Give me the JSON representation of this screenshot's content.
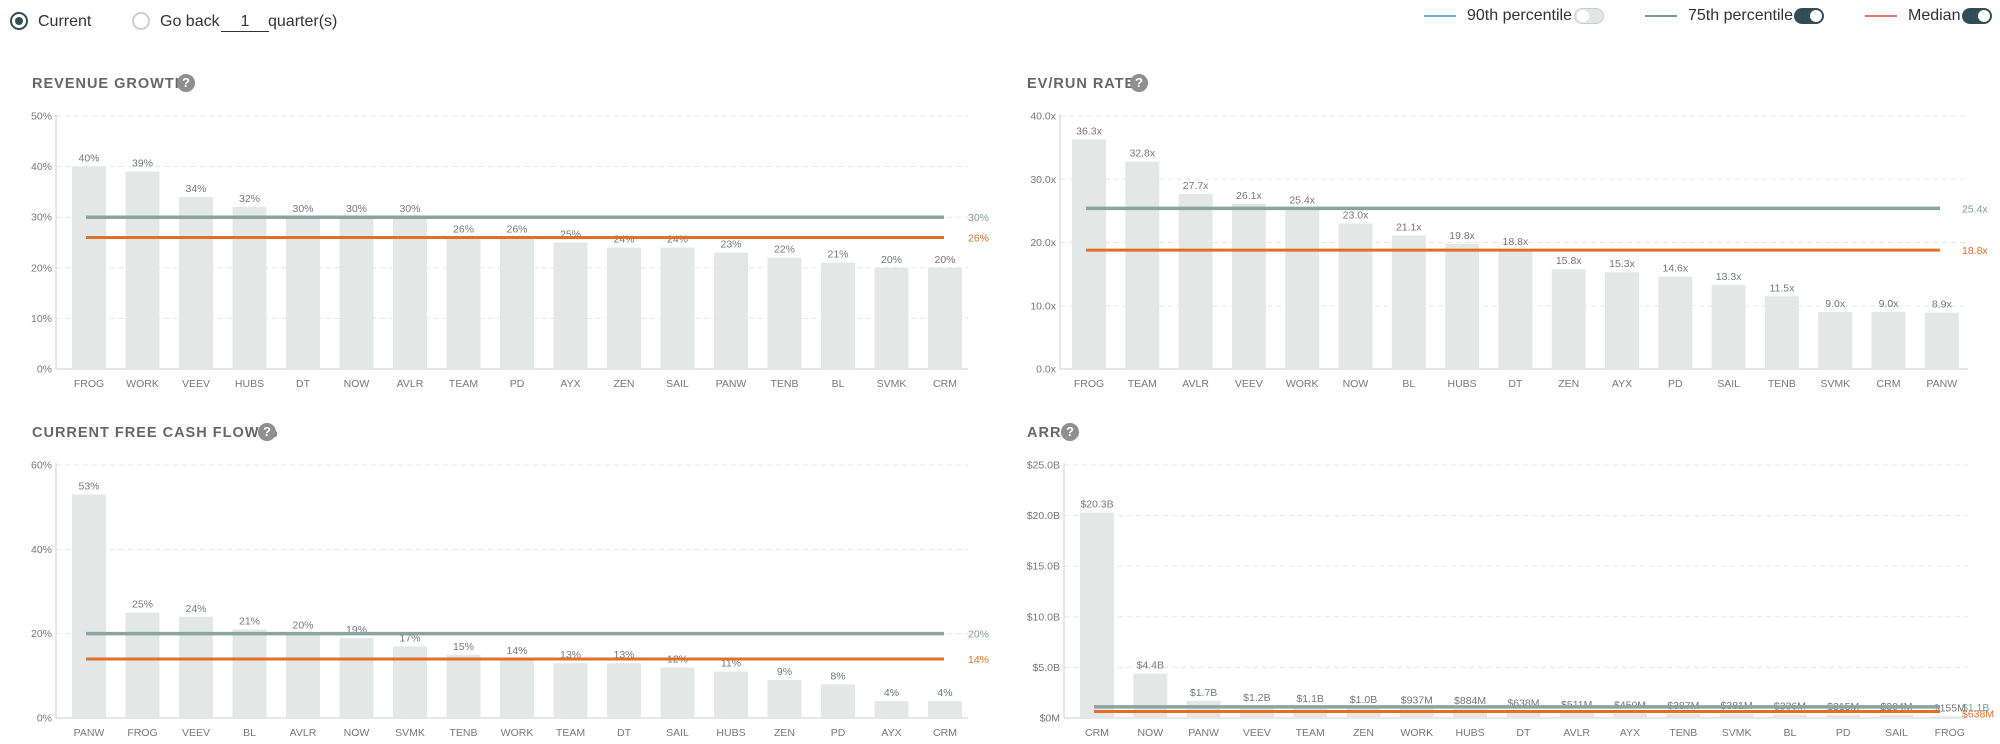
{
  "controls": {
    "current_label": "Current",
    "go_back_label": "Go back",
    "go_back_value": "1",
    "quarters_label": "quarter(s)"
  },
  "legend": {
    "p90_label": "90th percentile",
    "p75_label": "75th percentile",
    "median_label": "Median",
    "p90_color": "#6aa9d8",
    "p75_color": "#7c9a9c",
    "median_color": "#e07a6e",
    "p90_enabled": false,
    "p75_enabled": true,
    "median_enabled": true
  },
  "colors": {
    "bar": "#e3e8e6",
    "p75_line": "#8aa3a3",
    "median_line": "#e07028",
    "p75_text": "#7c9a9c",
    "median_text": "#e07028"
  },
  "chart_data": [
    {
      "id": "revenue-growth",
      "type": "bar",
      "title": "REVENUE GROWTH",
      "categories": [
        "FROG",
        "WORK",
        "VEEV",
        "HUBS",
        "DT",
        "NOW",
        "AVLR",
        "TEAM",
        "PD",
        "AYX",
        "ZEN",
        "SAIL",
        "PANW",
        "TENB",
        "BL",
        "SVMK",
        "CRM"
      ],
      "values": [
        40,
        39,
        34,
        32,
        30,
        30,
        30,
        26,
        26,
        25,
        24,
        24,
        23,
        22,
        21,
        20,
        20
      ],
      "value_labels": [
        "40%",
        "39%",
        "34%",
        "32%",
        "30%",
        "30%",
        "30%",
        "26%",
        "26%",
        "25%",
        "24%",
        "24%",
        "23%",
        "22%",
        "21%",
        "20%",
        "20%"
      ],
      "y_ticks": [
        0,
        10,
        20,
        30,
        40,
        50
      ],
      "y_tick_labels": [
        "0%",
        "10%",
        "20%",
        "30%",
        "40%",
        "50%"
      ],
      "ylim": [
        0,
        50
      ],
      "p75": 30,
      "p75_label": "30%",
      "median": 26,
      "median_label": "26%"
    },
    {
      "id": "ev-run-rate",
      "type": "bar",
      "title": "EV/RUN RATE",
      "categories": [
        "FROG",
        "TEAM",
        "AVLR",
        "VEEV",
        "WORK",
        "NOW",
        "BL",
        "HUBS",
        "DT",
        "ZEN",
        "AYX",
        "PD",
        "SAIL",
        "TENB",
        "SVMK",
        "CRM",
        "PANW"
      ],
      "values": [
        36.3,
        32.8,
        27.7,
        26.1,
        25.4,
        23.0,
        21.1,
        19.8,
        18.8,
        15.8,
        15.3,
        14.6,
        13.3,
        11.5,
        9.0,
        9.0,
        8.9
      ],
      "value_labels": [
        "36.3x",
        "32.8x",
        "27.7x",
        "26.1x",
        "25.4x",
        "23.0x",
        "21.1x",
        "19.8x",
        "18.8x",
        "15.8x",
        "15.3x",
        "14.6x",
        "13.3x",
        "11.5x",
        "9.0x",
        "9.0x",
        "8.9x"
      ],
      "y_ticks": [
        0,
        10,
        20,
        30,
        40
      ],
      "y_tick_labels": [
        "0.0x",
        "10.0x",
        "20.0x",
        "30.0x",
        "40.0x"
      ],
      "ylim": [
        0,
        40
      ],
      "p75": 25.4,
      "p75_label": "25.4x",
      "median": 18.8,
      "median_label": "18.8x"
    },
    {
      "id": "current-fcf",
      "type": "bar",
      "title": "CURRENT FREE CASH FLOW %",
      "categories": [
        "PANW",
        "FROG",
        "VEEV",
        "BL",
        "AVLR",
        "NOW",
        "SVMK",
        "TENB",
        "WORK",
        "TEAM",
        "DT",
        "SAIL",
        "HUBS",
        "ZEN",
        "PD",
        "AYX",
        "CRM"
      ],
      "values": [
        53,
        25,
        24,
        21,
        20,
        19,
        17,
        15,
        14,
        13,
        13,
        12,
        11,
        9,
        8,
        4,
        4
      ],
      "value_labels": [
        "53%",
        "25%",
        "24%",
        "21%",
        "20%",
        "19%",
        "17%",
        "15%",
        "14%",
        "13%",
        "13%",
        "12%",
        "11%",
        "9%",
        "8%",
        "4%",
        "4%"
      ],
      "y_ticks": [
        0,
        20,
        40,
        60
      ],
      "y_tick_labels": [
        "0%",
        "20%",
        "40%",
        "60%"
      ],
      "ylim": [
        0,
        60
      ],
      "p75": 20,
      "p75_label": "20%",
      "median": 14,
      "median_label": "14%"
    },
    {
      "id": "arr",
      "type": "bar",
      "title": "ARR",
      "categories": [
        "CRM",
        "NOW",
        "PANW",
        "VEEV",
        "TEAM",
        "ZEN",
        "WORK",
        "HUBS",
        "DT",
        "AVLR",
        "AYX",
        "TENB",
        "SVMK",
        "BL",
        "PD",
        "SAIL",
        "FROG"
      ],
      "values": [
        20.3,
        4.4,
        1.7,
        1.2,
        1.1,
        1.0,
        0.937,
        0.884,
        0.638,
        0.511,
        0.45,
        0.387,
        0.381,
        0.336,
        0.315,
        0.304,
        0.155
      ],
      "value_labels": [
        "$20.3B",
        "$4.4B",
        "$1.7B",
        "$1.2B",
        "$1.1B",
        "$1.0B",
        "$937M",
        "$884M",
        "$638M",
        "$511M",
        "$450M",
        "$387M",
        "$381M",
        "$336M",
        "$315M",
        "$304M",
        "$155M"
      ],
      "y_ticks": [
        0,
        5,
        10,
        15,
        20,
        25
      ],
      "y_tick_labels": [
        "$0M",
        "$5.0B",
        "$10.0B",
        "$15.0B",
        "$20.0B",
        "$25.0B"
      ],
      "ylim": [
        0,
        25
      ],
      "p75": 1.1,
      "p75_label": "$1.1B",
      "median": 0.638,
      "median_label": "$638M"
    }
  ]
}
